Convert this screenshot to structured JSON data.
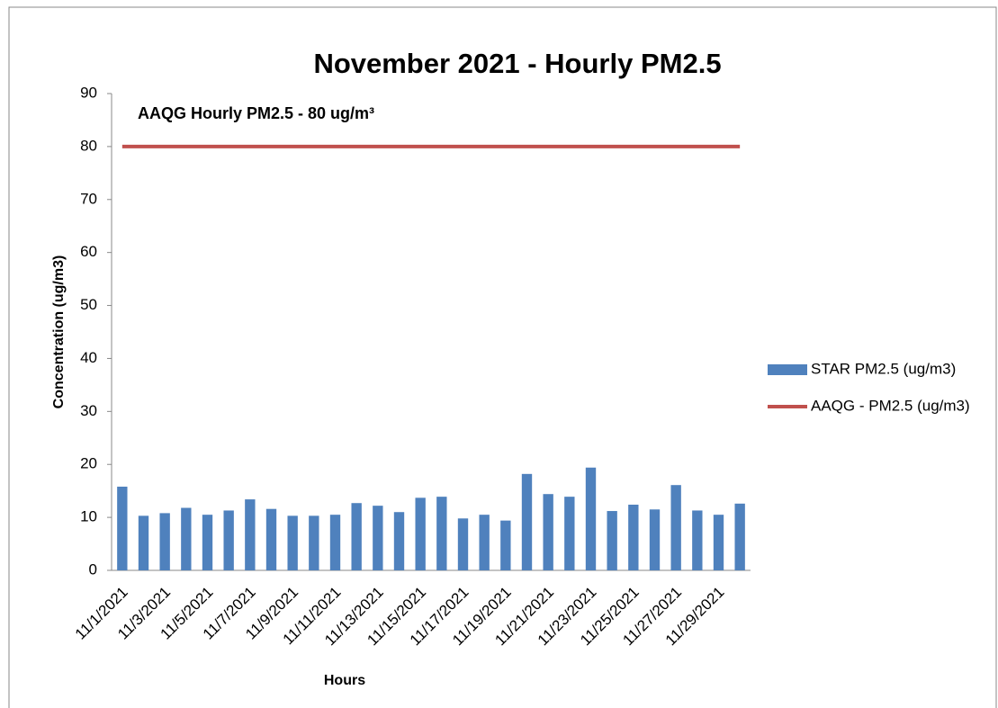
{
  "chart_data": {
    "type": "bar",
    "title": "November 2021 - Hourly PM2.5",
    "x_label": "Hours",
    "y_label": "Concentration (ug/m3)",
    "annotation": "AAQG Hourly PM2.5 - 80 ug/m³",
    "categories": [
      "11/1/2021",
      null,
      "11/3/2021",
      null,
      "11/5/2021",
      null,
      "11/7/2021",
      null,
      "11/9/2021",
      null,
      "11/11/2021",
      null,
      "11/13/2021",
      null,
      "11/15/2021",
      null,
      "11/17/2021",
      null,
      "11/19/2021",
      null,
      "11/21/2021",
      null,
      "11/23/2021",
      null,
      "11/25/2021",
      null,
      "11/27/2021",
      null,
      "11/29/2021",
      null
    ],
    "series": [
      {
        "name": "STAR PM2.5 (ug/m3)",
        "type": "bar",
        "color": "#4f81bd",
        "values": [
          15.8,
          10.3,
          10.8,
          11.8,
          10.5,
          11.3,
          13.4,
          11.6,
          10.3,
          10.3,
          10.5,
          12.7,
          12.2,
          11.0,
          13.7,
          13.9,
          9.8,
          10.5,
          9.4,
          18.2,
          14.4,
          13.9,
          19.4,
          11.2,
          12.4,
          11.5,
          16.1,
          11.3,
          10.5,
          12.6
        ]
      },
      {
        "name": "AAQG - PM2.5 (ug/m3)",
        "type": "line",
        "color": "#c0504d",
        "values": [
          80,
          80,
          80,
          80,
          80,
          80,
          80,
          80,
          80,
          80,
          80,
          80,
          80,
          80,
          80,
          80,
          80,
          80,
          80,
          80,
          80,
          80,
          80,
          80,
          80,
          80,
          80,
          80,
          80,
          80
        ]
      }
    ],
    "annotation_color": "#ff0000",
    "ylim": [
      0,
      90
    ],
    "yticks": [
      0,
      10,
      20,
      30,
      40,
      50,
      60,
      70,
      80,
      90
    ],
    "grid": false,
    "legend": "right"
  }
}
